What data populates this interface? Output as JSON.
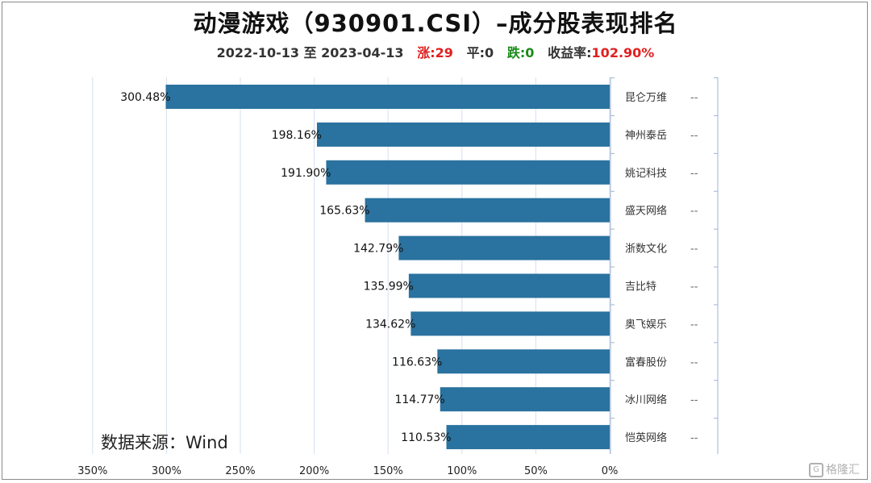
{
  "header": {
    "title": "动漫游戏（930901.CSI）–成分股表现排名",
    "date_range": "2022-10-13 至 2023-04-13",
    "up_label": "涨:29",
    "flat_label": "平:0",
    "down_label": "跌:0",
    "return_label": "收益率:",
    "return_value": "102.90%"
  },
  "source": "数据来源：Wind",
  "watermark": "格隆汇",
  "colors": {
    "bar": "#2a729f",
    "grid": "#d6dfef",
    "up": "#e02020",
    "down": "#1a8a1a"
  },
  "chart_data": {
    "type": "bar",
    "orientation": "horizontal",
    "direction": "right-to-left",
    "categories": [
      "昆仑万维",
      "神州泰岳",
      "姚记科技",
      "盛天网络",
      "浙数文化",
      "吉比特",
      "奥飞娱乐",
      "富春股份",
      "冰川网络",
      "恺英网络"
    ],
    "values": [
      300.48,
      198.16,
      191.9,
      165.63,
      142.79,
      135.99,
      134.62,
      116.63,
      114.77,
      110.53
    ],
    "value_labels": [
      "300.48%",
      "198.16%",
      "191.90%",
      "165.63%",
      "142.79%",
      "135.99%",
      "134.62%",
      "116.63%",
      "114.77%",
      "110.53%"
    ],
    "secondary_labels": [
      "--",
      "--",
      "--",
      "--",
      "--",
      "--",
      "--",
      "--",
      "--",
      "--"
    ],
    "xlim": [
      0,
      350
    ],
    "x_ticks": [
      350,
      300,
      250,
      200,
      150,
      100,
      50,
      0
    ],
    "x_tick_labels": [
      "350%",
      "300%",
      "250%",
      "200%",
      "150%",
      "100%",
      "50%",
      "0%"
    ],
    "grid": true
  }
}
